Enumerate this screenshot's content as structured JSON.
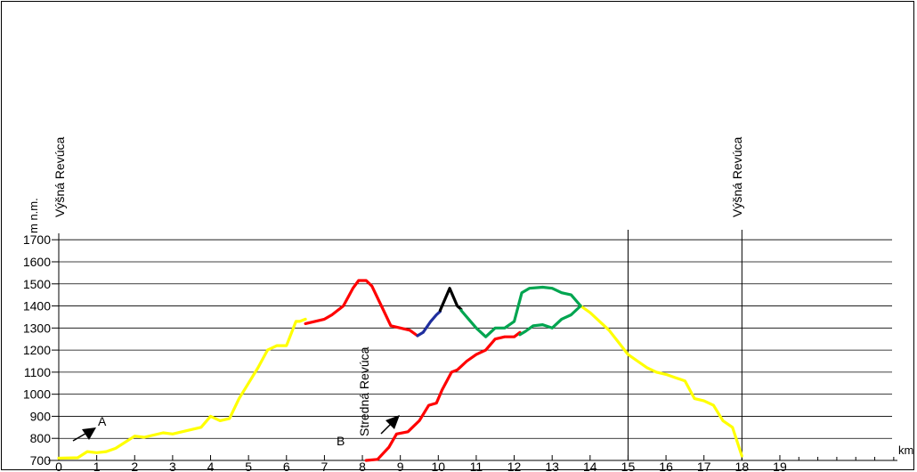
{
  "chart_data": {
    "type": "line",
    "title": "",
    "ylabel": "m n.m.",
    "xlabel": "km",
    "xlim": [
      0,
      19
    ],
    "ylim": [
      700,
      1700
    ],
    "x_ticks": [
      0,
      1,
      2,
      3,
      4,
      5,
      6,
      7,
      8,
      9,
      10,
      11,
      12,
      13,
      14,
      15,
      16,
      17,
      18,
      19
    ],
    "x_tick_labels": [
      "0",
      "1",
      "2",
      "3",
      "4",
      "5",
      "6",
      "7",
      "8",
      "9",
      "10",
      "11",
      "12",
      "13",
      "14",
      "15",
      "16",
      "17",
      "18",
      "19"
    ],
    "y_ticks": [
      700,
      800,
      900,
      1000,
      1100,
      1200,
      1300,
      1400,
      1500,
      1600,
      1700
    ],
    "y_tick_labels": [
      "700",
      "800",
      "900",
      "1000",
      "1100",
      "1200",
      "1300",
      "1400",
      "1500",
      "1600",
      "1700"
    ],
    "grid": "horizontal",
    "annotations": {
      "start_left": "Výšná Revúca",
      "mid": "Stredná Revúca",
      "end_right": "Výšná Revúca",
      "marker_a": "A",
      "marker_b": "B"
    },
    "vertical_markers_km": [
      15.0,
      18.0
    ],
    "series": [
      {
        "color": "#FFFF00",
        "x": [
          0,
          0.5,
          0.75,
          1,
          1.25,
          1.5,
          2,
          2.25,
          2.5,
          2.75,
          3,
          3.25,
          3.5,
          3.75,
          4,
          4.25,
          4.5,
          4.75,
          5,
          5.25,
          5.5,
          5.75,
          6,
          6.25,
          6.35,
          6.5
        ],
        "y": [
          710,
          712,
          740,
          735,
          740,
          755,
          810,
          805,
          815,
          825,
          820,
          830,
          840,
          850,
          900,
          880,
          890,
          980,
          1050,
          1120,
          1200,
          1220,
          1220,
          1330,
          1330,
          1340
        ]
      },
      {
        "color": "#FF0000",
        "x": [
          6.5,
          7,
          7.2,
          7.5,
          7.75,
          7.9,
          8.1,
          8.25,
          8.5,
          8.75,
          9,
          9.25,
          9.45
        ],
        "y": [
          1320,
          1340,
          1360,
          1400,
          1480,
          1515,
          1515,
          1490,
          1400,
          1310,
          1300,
          1290,
          1265
        ]
      },
      {
        "color": "#1F2E9E",
        "x": [
          9.45,
          9.6,
          9.8,
          9.95,
          10.05
        ],
        "y": [
          1265,
          1280,
          1330,
          1360,
          1375
        ]
      },
      {
        "color": "#000000",
        "x": [
          10.05,
          10.3,
          10.5,
          10.6
        ],
        "y": [
          1380,
          1480,
          1400,
          1385
        ]
      },
      {
        "color": "#00A550",
        "x": [
          10.6,
          10.8,
          11,
          11.25,
          11.5,
          11.75,
          12,
          12.2,
          12.4,
          12.75,
          13,
          13.25,
          13.5,
          13.75
        ],
        "y": [
          1380,
          1340,
          1300,
          1260,
          1300,
          1300,
          1330,
          1460,
          1480,
          1485,
          1480,
          1460,
          1450,
          1400
        ]
      },
      {
        "color": "#FFFF00",
        "x": [
          13.75,
          14,
          14.25,
          14.5,
          15,
          15.25,
          15.5,
          15.75,
          16,
          16.25,
          16.5,
          16.75,
          17,
          17.25,
          17.5,
          17.75,
          18
        ],
        "y": [
          1400,
          1370,
          1330,
          1290,
          1180,
          1150,
          1120,
          1100,
          1090,
          1075,
          1060,
          980,
          970,
          950,
          880,
          850,
          720
        ]
      },
      {
        "color": "#FF0000",
        "x": [
          8.1,
          8.4,
          8.7,
          8.9,
          9.2,
          9.5,
          9.75,
          9.95,
          10.1,
          10.35,
          10.5,
          10.75,
          11,
          11.25,
          11.5,
          11.75,
          12,
          12.15
        ],
        "y": [
          700,
          705,
          760,
          820,
          830,
          880,
          950,
          960,
          1020,
          1100,
          1110,
          1150,
          1180,
          1200,
          1250,
          1260,
          1260,
          1280
        ]
      },
      {
        "color": "#00A550",
        "x": [
          12.15,
          12.3,
          12.5,
          12.75,
          13,
          13.25,
          13.5,
          13.75
        ],
        "y": [
          1270,
          1285,
          1310,
          1315,
          1300,
          1340,
          1360,
          1400
        ]
      }
    ]
  }
}
